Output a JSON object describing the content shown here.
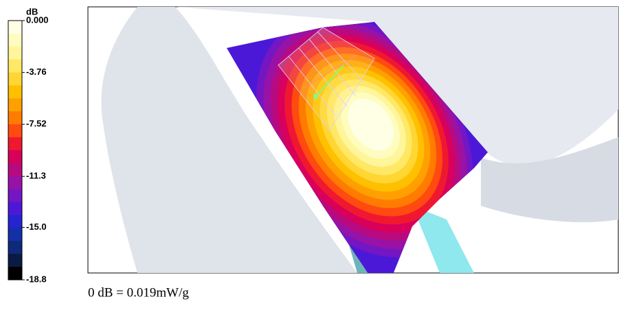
{
  "colorbar": {
    "title": "dB",
    "ticks": [
      {
        "value": 0,
        "label": "0.000"
      },
      {
        "value": -3.76,
        "label": "-3.76"
      },
      {
        "value": -7.52,
        "label": "-7.52"
      },
      {
        "value": -11.3,
        "label": "-11.3"
      },
      {
        "value": -15.0,
        "label": "-15.0"
      },
      {
        "value": -18.8,
        "label": "-18.8"
      }
    ],
    "colors": [
      "#ffffe6",
      "#fffcc0",
      "#fff59a",
      "#ffe866",
      "#ffd633",
      "#ffc000",
      "#ffa000",
      "#ff7c00",
      "#ff4a10",
      "#f01830",
      "#d8005a",
      "#b80a80",
      "#9812a6",
      "#7416c4",
      "#4c18d8",
      "#2424d0",
      "#1430a8",
      "#0e2a78",
      "#0a1a44",
      "#000000"
    ]
  },
  "caption": "0 dB = 0.019mW/g"
}
